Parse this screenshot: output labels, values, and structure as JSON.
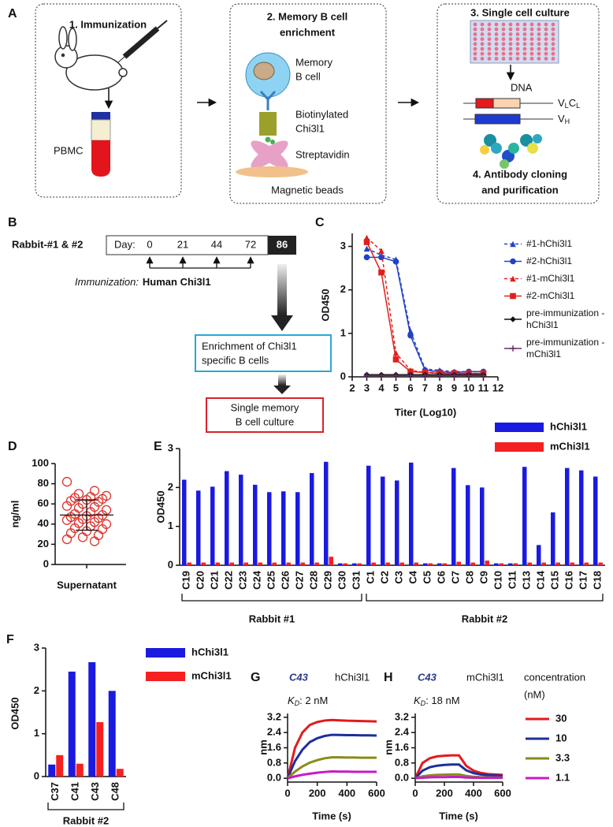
{
  "panel_a": {
    "label": "A",
    "step1_title": "1. Immunization",
    "pbmc": "PBMC",
    "step2_title": [
      "2. Memory B cell",
      "enrichment"
    ],
    "memory_b_cell": [
      "Memory",
      "B cell"
    ],
    "biotinylated": [
      "Biotinylated",
      "Chi3l1"
    ],
    "streptavidin": "Streptavidin",
    "magnetic_beads": "Magnetic beads",
    "step3_title": "3. Single cell culture",
    "dna": "DNA",
    "light_chain": [
      "V",
      "L",
      "C",
      "L"
    ],
    "heavy_chain": [
      "V",
      "H"
    ],
    "step4_title": [
      "4. Antibody cloning",
      "and purification"
    ]
  },
  "panel_b": {
    "label": "B",
    "subject": "Rabbit-#1 & #2",
    "day_label": "Day:",
    "days": [
      0,
      21,
      44,
      72,
      86
    ],
    "immunization_label": "Immunization:",
    "antigen": "Human Chi3l1",
    "enrichment": [
      "Enrichment of  Chi3l1",
      "specific B cells"
    ],
    "culture": [
      "Single memory",
      "B cell culture"
    ]
  },
  "chart_data": [
    {
      "type": "line",
      "panel": "C",
      "ylabel": "OD450",
      "xlabel": "Titer (Log10)",
      "x": [
        3,
        4,
        5,
        6,
        7,
        8,
        9,
        10,
        11
      ],
      "xlim": [
        2,
        12
      ],
      "xticks": [
        2,
        3,
        4,
        5,
        6,
        7,
        8,
        9,
        10,
        11,
        12
      ],
      "ylim": [
        0,
        3.3
      ],
      "yticks": [
        0,
        1,
        2,
        3
      ],
      "series": [
        {
          "name": "#1-hChi3l1",
          "color": "#2241c9",
          "marker": "triangle",
          "dashed": true,
          "values": [
            2.95,
            2.8,
            2.7,
            1.05,
            0.18,
            0.15,
            0.12,
            0.12,
            0.12
          ]
        },
        {
          "name": "#2-hChi3l1",
          "color": "#2241c9",
          "marker": "circle",
          "dashed": false,
          "values": [
            2.75,
            2.75,
            2.65,
            0.95,
            0.15,
            0.12,
            0.1,
            0.12,
            0.12
          ]
        },
        {
          "name": "#1-mChi3l1",
          "color": "#e0201a",
          "marker": "triangle",
          "dashed": true,
          "values": [
            3.2,
            2.9,
            0.55,
            0.15,
            0.1,
            0.1,
            0.08,
            0.08,
            0.08
          ]
        },
        {
          "name": "#2-mChi3l1",
          "color": "#e0201a",
          "marker": "square",
          "dashed": false,
          "values": [
            3.1,
            2.4,
            0.4,
            0.12,
            0.1,
            0.08,
            0.08,
            0.08,
            0.08
          ]
        },
        {
          "name": "pre-immunization -hChi3l1",
          "color": "#111111",
          "marker": "diamond",
          "dashed": false,
          "values": [
            0.05,
            0.05,
            0.05,
            0.05,
            0.05,
            0.05,
            0.05,
            0.05,
            0.05
          ]
        },
        {
          "name": "pre-immunization -mChi3l1",
          "color": "#6b2d6b",
          "marker": "plus",
          "dashed": false,
          "values": [
            0.03,
            0.03,
            0.03,
            0.03,
            0.03,
            0.03,
            0.03,
            0.03,
            0.03
          ]
        }
      ]
    },
    {
      "type": "scatter",
      "panel": "D",
      "ylabel": "ng/ml",
      "categories": [
        "Supernatant"
      ],
      "color": "#e0302a",
      "values": [
        82,
        73,
        70,
        68,
        67,
        66,
        65,
        64,
        63,
        62,
        60,
        58,
        57,
        56,
        54,
        52,
        50,
        49,
        48,
        47,
        46,
        45,
        44,
        42,
        41,
        40,
        38,
        36,
        35,
        33,
        31,
        29,
        27,
        25,
        23
      ],
      "mean": 49,
      "error": 15,
      "ylim": [
        0,
        100
      ],
      "yticks": [
        0,
        20,
        40,
        60,
        80,
        100
      ]
    },
    {
      "type": "bar",
      "panel": "E",
      "ylabel": "OD450",
      "groups": [
        {
          "label": "Rabbit #1",
          "categories": [
            "C19",
            "C20",
            "C21",
            "C22",
            "C23",
            "C24",
            "C25",
            "C26",
            "C27",
            "C28",
            "C29",
            "C30",
            "C31"
          ]
        },
        {
          "label": "Rabbit #2",
          "categories": [
            "C1",
            "C2",
            "C3",
            "C4",
            "C5",
            "C6",
            "C7",
            "C8",
            "C9",
            "C10",
            "C11",
            "C13",
            "C14",
            "C15",
            "C16",
            "C17",
            "C18"
          ]
        }
      ],
      "series": [
        {
          "name": "hChi3l1",
          "color": "#1a1ae0",
          "values": [
            2.2,
            1.92,
            2.02,
            2.42,
            2.33,
            2.07,
            1.88,
            1.9,
            1.88,
            2.37,
            2.66,
            0.05,
            0.05,
            2.56,
            2.28,
            2.18,
            2.64,
            0.05,
            0.05,
            2.5,
            2.06,
            2.0,
            0.05,
            0.05,
            2.53,
            0.52,
            1.36,
            2.5,
            2.44,
            2.28
          ]
        },
        {
          "name": "mChi3l1",
          "color": "#f52020",
          "values": [
            0.07,
            0.07,
            0.07,
            0.07,
            0.07,
            0.07,
            0.07,
            0.07,
            0.07,
            0.07,
            0.22,
            0.05,
            0.05,
            0.07,
            0.07,
            0.07,
            0.07,
            0.05,
            0.05,
            0.09,
            0.07,
            0.12,
            0.05,
            0.05,
            0.07,
            0.07,
            0.07,
            0.07,
            0.07,
            0.07
          ]
        }
      ],
      "ylim": [
        0,
        3
      ],
      "yticks": [
        0,
        1,
        2,
        3
      ]
    },
    {
      "type": "bar",
      "panel": "F",
      "ylabel": "OD450",
      "groups": [
        {
          "label": "Rabbit #2",
          "categories": [
            "C37",
            "C41",
            "C43",
            "C48"
          ]
        }
      ],
      "series": [
        {
          "name": "hChi3l1",
          "color": "#1a1ae0",
          "values": [
            0.28,
            2.45,
            2.67,
            2.0
          ]
        },
        {
          "name": "mChi3l1",
          "color": "#f52020",
          "values": [
            0.5,
            0.3,
            1.27,
            0.18
          ]
        }
      ],
      "ylim": [
        0,
        3
      ],
      "yticks": [
        0,
        1,
        2,
        3
      ]
    },
    {
      "type": "line",
      "panel": "G",
      "clone": "C43",
      "antigen": "hChi3l1",
      "kd_symbol": "K",
      "kd_subscript": "D",
      "kd_text": ": 2 nM",
      "xlabel": "Time (s)",
      "ylabel": "nm",
      "x": [
        0,
        50,
        100,
        150,
        200,
        250,
        300,
        350,
        400,
        450,
        500,
        550,
        600
      ],
      "xlim": [
        0,
        600
      ],
      "xticks": [
        0,
        200,
        400,
        600
      ],
      "ylim": [
        -0.2,
        3.4
      ],
      "yticks": [
        {
          "value": 0,
          "label": "0.0"
        },
        0.8,
        1.6,
        2.4,
        3.2
      ],
      "series": [
        {
          "color": "#e31a1c",
          "values": [
            0,
            1.6,
            2.4,
            2.8,
            2.95,
            3.03,
            3.06,
            3.04,
            3.02,
            3.01,
            3.0,
            2.99,
            2.98
          ]
        },
        {
          "color": "#1c2f9c",
          "values": [
            0,
            0.9,
            1.5,
            1.9,
            2.1,
            2.22,
            2.28,
            2.27,
            2.26,
            2.26,
            2.25,
            2.25,
            2.24
          ]
        },
        {
          "color": "#8a8a1a",
          "values": [
            0,
            0.35,
            0.62,
            0.82,
            0.95,
            1.05,
            1.1,
            1.1,
            1.09,
            1.09,
            1.08,
            1.08,
            1.08
          ]
        },
        {
          "color": "#c51bc5",
          "values": [
            0,
            0.1,
            0.18,
            0.24,
            0.29,
            0.33,
            0.36,
            0.35,
            0.35,
            0.34,
            0.34,
            0.34,
            0.34
          ]
        }
      ]
    },
    {
      "type": "line",
      "panel": "H",
      "clone": "C43",
      "antigen": "mChi3l1",
      "kd_symbol": "K",
      "kd_subscript": "D",
      "kd_text": ": 18 nM",
      "xlabel": "Time (s)",
      "ylabel": "nm",
      "legend_title": [
        "concentration",
        "(nM)"
      ],
      "x": [
        0,
        50,
        100,
        150,
        200,
        250,
        300,
        350,
        400,
        450,
        500,
        550,
        600
      ],
      "xlim": [
        0,
        600
      ],
      "xticks": [
        0,
        200,
        400,
        600
      ],
      "ylim": [
        -0.2,
        3.4
      ],
      "yticks": [
        {
          "value": 0,
          "label": "0.0"
        },
        0.8,
        1.6,
        2.4,
        3.2
      ],
      "series": [
        {
          "name": "30",
          "color": "#e31a1c",
          "values": [
            0,
            0.8,
            1.05,
            1.15,
            1.18,
            1.2,
            1.2,
            0.65,
            0.4,
            0.28,
            0.22,
            0.2,
            0.18
          ]
        },
        {
          "name": "10",
          "color": "#1c2f9c",
          "values": [
            0,
            0.4,
            0.58,
            0.66,
            0.7,
            0.72,
            0.72,
            0.42,
            0.27,
            0.2,
            0.16,
            0.14,
            0.13
          ]
        },
        {
          "name": "3.3",
          "color": "#8a8a1a",
          "values": [
            0,
            0.1,
            0.15,
            0.18,
            0.19,
            0.2,
            0.2,
            0.12,
            0.08,
            0.06,
            0.05,
            0.04,
            0.04
          ]
        },
        {
          "name": "1.1",
          "color": "#c51bc5",
          "values": [
            0,
            0.03,
            0.05,
            0.06,
            0.06,
            0.07,
            0.07,
            0.04,
            0.03,
            0.02,
            0.02,
            0.02,
            0.02
          ]
        }
      ]
    }
  ]
}
